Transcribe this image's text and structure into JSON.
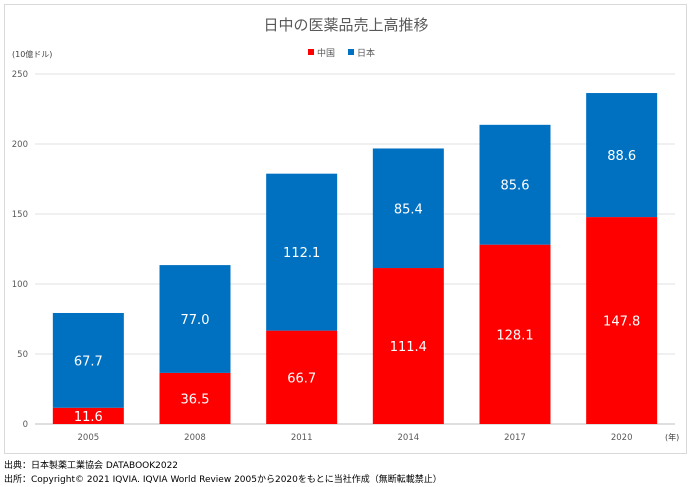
{
  "chart_data": {
    "type": "bar",
    "stacked": true,
    "title": "日中の医薬品売上高推移",
    "ylabel": "(10億ドル)",
    "xlabel": "(年)",
    "categories": [
      "2005",
      "2008",
      "2011",
      "2014",
      "2017",
      "2020"
    ],
    "series": [
      {
        "name": "中国",
        "color": "#ff0000",
        "values": [
          11.6,
          36.5,
          66.7,
          111.4,
          128.1,
          147.8
        ]
      },
      {
        "name": "日本",
        "color": "#0070c0",
        "values": [
          67.7,
          77.0,
          112.1,
          85.4,
          85.6,
          88.6
        ]
      }
    ],
    "yticks": [
      "0",
      "50",
      "100",
      "150",
      "200",
      "250"
    ],
    "ylim": [
      0,
      250
    ],
    "grid": true,
    "legend": "top-center"
  },
  "footnotes": {
    "source1": "出典：日本製薬工業協会 DATABOOK2022",
    "source2": "出所：Copyright© 2021 IQVIA. IQVIA World Review 2005から2020をもとに当社作成（無断転載禁止）"
  }
}
